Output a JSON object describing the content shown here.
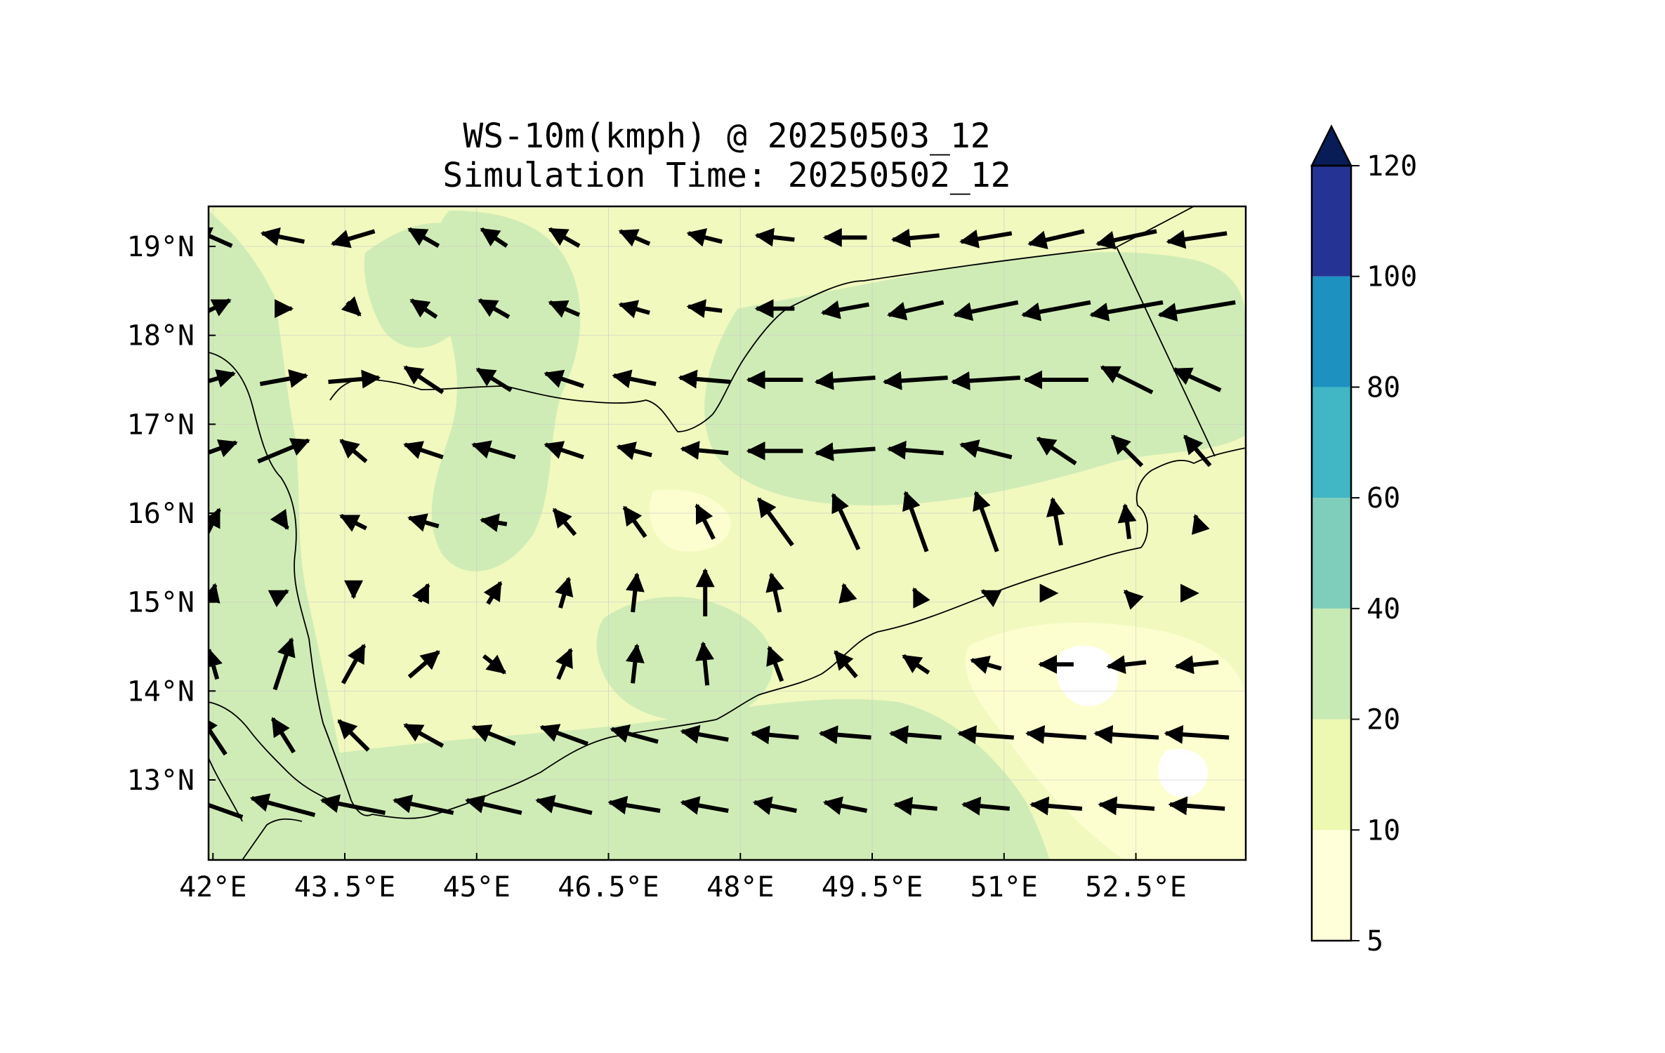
{
  "title": {
    "line1": "WS-10m(kmph) @ 20250503_12",
    "line2": "Simulation Time: 20250502_12"
  },
  "chart_data": {
    "type": "heatmap",
    "variable": "WS-10m(kmph)",
    "valid_time": "20250503_12",
    "simulation_time": "20250502_12",
    "xlim": [
      41.95,
      53.75
    ],
    "ylim": [
      12.1,
      19.45
    ],
    "x_ticks": [
      {
        "value": 42.0,
        "label": "42°E"
      },
      {
        "value": 43.5,
        "label": "43.5°E"
      },
      {
        "value": 45.0,
        "label": "45°E"
      },
      {
        "value": 46.5,
        "label": "46.5°E"
      },
      {
        "value": 48.0,
        "label": "48°E"
      },
      {
        "value": 49.5,
        "label": "49.5°E"
      },
      {
        "value": 51.0,
        "label": "51°E"
      },
      {
        "value": 52.5,
        "label": "52.5°E"
      }
    ],
    "y_ticks": [
      {
        "value": 13,
        "label": "13°N"
      },
      {
        "value": 14,
        "label": "14°N"
      },
      {
        "value": 15,
        "label": "15°N"
      },
      {
        "value": 16,
        "label": "16°N"
      },
      {
        "value": 17,
        "label": "17°N"
      },
      {
        "value": 18,
        "label": "18°N"
      },
      {
        "value": 19,
        "label": "19°N"
      }
    ],
    "grid": true,
    "colorbar": {
      "placement": "right",
      "levels": [
        5,
        10,
        20,
        40,
        60,
        80,
        100,
        120
      ],
      "level_labels": [
        "5",
        "10",
        "20",
        "40",
        "60",
        "80",
        "100",
        "120"
      ],
      "colors": [
        "#ffffd9",
        "#edf8b1",
        "#c7e9b4",
        "#7fcdbb",
        "#41b6c4",
        "#1d91c0",
        "#253494"
      ],
      "extend_color": "#081d58",
      "extend": "max"
    },
    "wind_field": {
      "unit": "kmph",
      "grid_lon": [
        42.0,
        42.8,
        43.6,
        44.4,
        45.2,
        46.0,
        46.8,
        47.6,
        48.4,
        49.2,
        50.0,
        50.8,
        51.6,
        52.4,
        53.2
      ],
      "grid_lat": [
        19.1,
        18.3,
        17.5,
        16.7,
        15.9,
        15.1,
        14.3,
        13.5,
        12.7
      ],
      "u": [
        [
          -18,
          -20,
          -20,
          -14,
          -12,
          -14,
          -14,
          -16,
          -18,
          -20,
          -22,
          -24,
          -26,
          -28,
          -28
        ],
        [
          16,
          8,
          6,
          -12,
          -14,
          -14,
          -14,
          -16,
          -18,
          -22,
          -26,
          -30,
          -32,
          -34,
          -36
        ],
        [
          20,
          22,
          24,
          -18,
          -16,
          -18,
          -20,
          -24,
          -26,
          -28,
          -30,
          -32,
          -30,
          -24,
          -22
        ],
        [
          22,
          24,
          -12,
          -18,
          -20,
          -18,
          -16,
          -22,
          -26,
          -28,
          -26,
          -24,
          -18,
          -14,
          -12
        ],
        [
          6,
          4,
          -12,
          -14,
          -12,
          -10,
          -10,
          -8,
          -16,
          -12,
          -10,
          -10,
          -4,
          -2,
          -2
        ],
        [
          2,
          4,
          0,
          4,
          6,
          4,
          2,
          0,
          -4,
          -2,
          -2,
          -4,
          0,
          -2,
          0
        ],
        [
          -4,
          8,
          10,
          14,
          10,
          6,
          2,
          -2,
          -6,
          -10,
          -12,
          -14,
          -16,
          -18,
          -20
        ],
        [
          -12,
          -10,
          -14,
          -18,
          -20,
          -22,
          -22,
          -22,
          -22,
          -24,
          -24,
          -26,
          -28,
          -30,
          -30
        ],
        [
          -28,
          -30,
          -30,
          -28,
          -26,
          -26,
          -24,
          -22,
          -20,
          -20,
          -20,
          -22,
          -24,
          -26,
          -26
        ]
      ],
      "v": [
        [
          8,
          4,
          -6,
          8,
          8,
          8,
          6,
          4,
          2,
          0,
          -2,
          -4,
          -6,
          -6,
          -4
        ],
        [
          8,
          0,
          -6,
          8,
          8,
          6,
          4,
          2,
          0,
          -4,
          -6,
          -6,
          -6,
          -6,
          -6
        ],
        [
          6,
          4,
          2,
          12,
          10,
          6,
          4,
          2,
          0,
          -2,
          -2,
          -2,
          0,
          12,
          10
        ],
        [
          8,
          10,
          10,
          6,
          6,
          6,
          4,
          2,
          0,
          -2,
          2,
          6,
          12,
          14,
          14
        ],
        [
          12,
          -6,
          6,
          4,
          2,
          12,
          14,
          16,
          22,
          26,
          28,
          28,
          22,
          16,
          6
        ],
        [
          8,
          2,
          -4,
          8,
          10,
          14,
          18,
          22,
          18,
          8,
          4,
          2,
          0,
          2,
          0
        ],
        [
          14,
          24,
          18,
          12,
          -8,
          14,
          18,
          20,
          16,
          12,
          8,
          4,
          0,
          -2,
          -2
        ],
        [
          18,
          16,
          14,
          10,
          8,
          8,
          6,
          4,
          2,
          2,
          2,
          2,
          2,
          2,
          2
        ],
        [
          10,
          8,
          6,
          6,
          6,
          6,
          4,
          4,
          4,
          4,
          2,
          2,
          2,
          2,
          2
        ]
      ]
    }
  }
}
